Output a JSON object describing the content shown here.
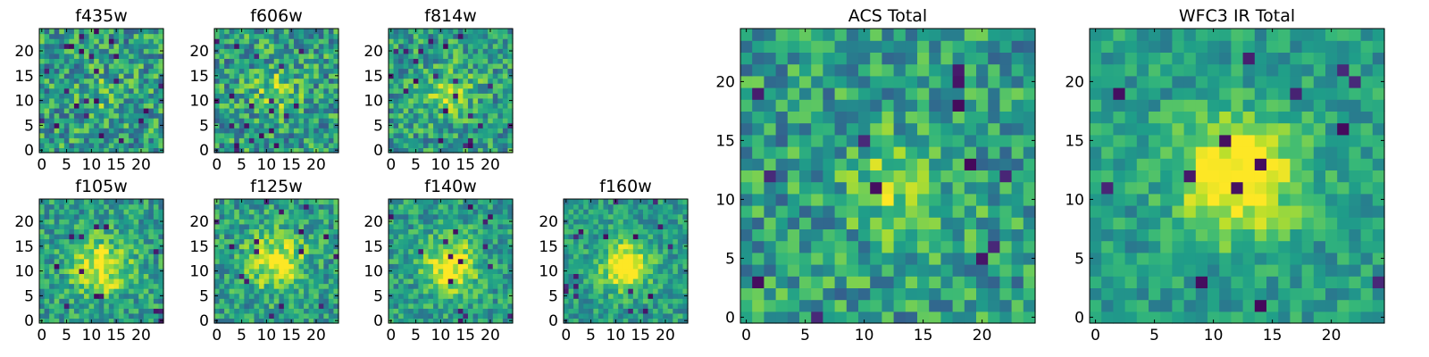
{
  "chart_data": [
    {
      "type": "heatmap",
      "title": "f435w",
      "xlim": [
        0,
        24
      ],
      "ylim": [
        0,
        24
      ],
      "xticks": [
        0,
        5,
        10,
        15,
        20
      ],
      "yticks": [
        0,
        5,
        10,
        15,
        20
      ],
      "colormap": "viridis",
      "peak_center": [
        12,
        11
      ],
      "peak_sigma": 3.0,
      "peak_strength": 0.15,
      "noise": 0.28,
      "seed": 11
    },
    {
      "type": "heatmap",
      "title": "f606w",
      "xlim": [
        0,
        24
      ],
      "ylim": [
        0,
        24
      ],
      "xticks": [
        0,
        5,
        10,
        15,
        20
      ],
      "yticks": [
        0,
        5,
        10,
        15,
        20
      ],
      "colormap": "viridis",
      "peak_center": [
        12,
        12
      ],
      "peak_sigma": 3.0,
      "peak_strength": 0.25,
      "noise": 0.28,
      "seed": 23
    },
    {
      "type": "heatmap",
      "title": "f814w",
      "xlim": [
        0,
        24
      ],
      "ylim": [
        0,
        24
      ],
      "xticks": [
        0,
        5,
        10,
        15,
        20
      ],
      "yticks": [
        0,
        5,
        10,
        15,
        20
      ],
      "colormap": "viridis",
      "peak_center": [
        12,
        12
      ],
      "peak_sigma": 3.5,
      "peak_strength": 0.3,
      "noise": 0.25,
      "seed": 37
    },
    {
      "type": "heatmap",
      "title": "f105w",
      "xlim": [
        0,
        24
      ],
      "ylim": [
        0,
        24
      ],
      "xticks": [
        0,
        5,
        10,
        15,
        20
      ],
      "yticks": [
        0,
        5,
        10,
        15,
        20
      ],
      "colormap": "viridis",
      "peak_center": [
        12,
        11
      ],
      "peak_sigma": 4.0,
      "peak_strength": 0.45,
      "noise": 0.22,
      "seed": 41
    },
    {
      "type": "heatmap",
      "title": "f125w",
      "xlim": [
        0,
        24
      ],
      "ylim": [
        0,
        24
      ],
      "xticks": [
        0,
        5,
        10,
        15,
        20
      ],
      "yticks": [
        0,
        5,
        10,
        15,
        20
      ],
      "colormap": "viridis",
      "peak_center": [
        12,
        12
      ],
      "peak_sigma": 4.0,
      "peak_strength": 0.45,
      "noise": 0.22,
      "seed": 53
    },
    {
      "type": "heatmap",
      "title": "f140w",
      "xlim": [
        0,
        24
      ],
      "ylim": [
        0,
        24
      ],
      "xticks": [
        0,
        5,
        10,
        15,
        20
      ],
      "yticks": [
        0,
        5,
        10,
        15,
        20
      ],
      "colormap": "viridis",
      "peak_center": [
        12,
        11
      ],
      "peak_sigma": 3.8,
      "peak_strength": 0.5,
      "noise": 0.2,
      "seed": 67
    },
    {
      "type": "heatmap",
      "title": "f160w",
      "xlim": [
        0,
        24
      ],
      "ylim": [
        0,
        24
      ],
      "xticks": [
        0,
        5,
        10,
        15,
        20
      ],
      "yticks": [
        0,
        5,
        10,
        15,
        20
      ],
      "colormap": "viridis",
      "peak_center": [
        12,
        11
      ],
      "peak_sigma": 3.2,
      "peak_strength": 0.6,
      "noise": 0.18,
      "seed": 79
    },
    {
      "type": "heatmap",
      "title": "ACS Total",
      "xlim": [
        0,
        24
      ],
      "ylim": [
        0,
        24
      ],
      "xticks": [
        0,
        5,
        10,
        15,
        20
      ],
      "yticks": [
        0,
        5,
        10,
        15,
        20
      ],
      "colormap": "viridis",
      "peak_center": [
        13,
        11
      ],
      "peak_sigma": 3.0,
      "peak_strength": 0.3,
      "noise": 0.25,
      "seed": 97
    },
    {
      "type": "heatmap",
      "title": "WFC3 IR Total",
      "xlim": [
        0,
        24
      ],
      "ylim": [
        0,
        24
      ],
      "xticks": [
        0,
        5,
        10,
        15,
        20
      ],
      "yticks": [
        0,
        5,
        10,
        15,
        20
      ],
      "colormap": "viridis",
      "peak_center": [
        12,
        12
      ],
      "peak_sigma": 3.5,
      "peak_strength": 0.6,
      "noise": 0.16,
      "seed": 113
    }
  ]
}
